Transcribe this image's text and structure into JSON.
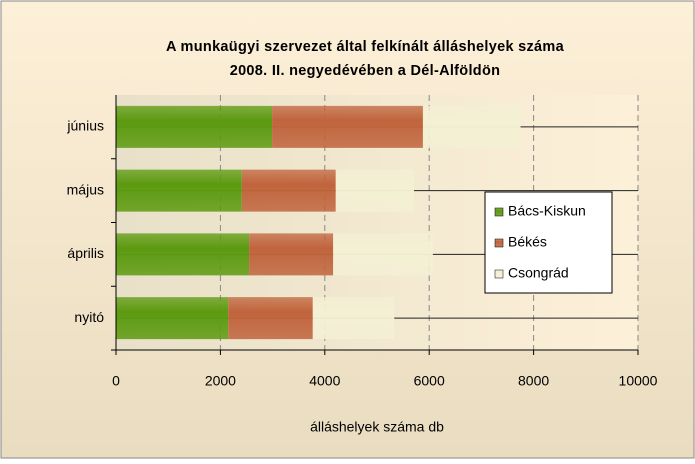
{
  "chart_data": {
    "type": "stacked_barh",
    "title": [
      "A munkaügyi szervezet által felkínált álláshelyek száma",
      "2008. II. negyedévében a Dél-Alföldön"
    ],
    "xlabel": "álláshelyek száma db",
    "categories": [
      "nyitó",
      "április",
      "május",
      "június"
    ],
    "series": [
      {
        "name": "Bács-Kiskun",
        "color": "#5c9a10",
        "values": [
          2150,
          2550,
          2410,
          2990
        ]
      },
      {
        "name": "Békés",
        "color": "#c0643c",
        "values": [
          1620,
          1610,
          1800,
          2890
        ]
      },
      {
        "name": "Csongrád",
        "color": "#f4f0d4",
        "values": [
          1560,
          1910,
          1500,
          1870
        ]
      }
    ],
    "xlim": [
      0,
      10000
    ],
    "xticks": [
      0,
      2000,
      4000,
      6000,
      8000,
      10000
    ],
    "grid": true,
    "legend": "right"
  }
}
